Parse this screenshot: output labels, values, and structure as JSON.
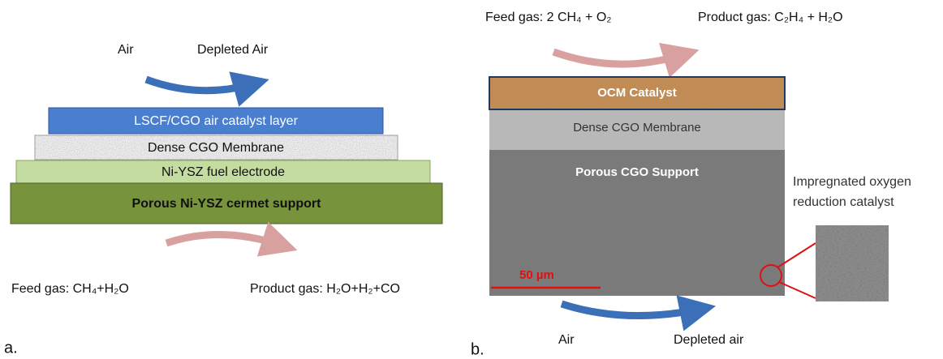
{
  "panel_a": {
    "label": "a.",
    "inlet_top": "Air",
    "outlet_top": "Depleted Air",
    "layers": [
      "LSCF/CGO air  catalyst layer",
      "Dense CGO Membrane",
      "Ni-YSZ fuel electrode",
      "Porous Ni-YSZ cermet support"
    ],
    "inlet_bottom": "Feed gas: CH₄+H₂O",
    "outlet_bottom": "Product gas: H₂O+H₂+CO"
  },
  "panel_b": {
    "label": "b.",
    "inlet_top": "Feed gas: 2 CH₄ + O₂",
    "outlet_top": "Product gas: C₂H₄ + H₂O",
    "layers": [
      "OCM Catalyst",
      "Dense CGO Membrane",
      "Porous CGO Support"
    ],
    "scale_bar": "50 µm",
    "inset_label": [
      "Impregnated oxygen",
      "reduction catalyst"
    ],
    "inlet_bottom": "Air",
    "outlet_bottom": "Depleted air"
  }
}
